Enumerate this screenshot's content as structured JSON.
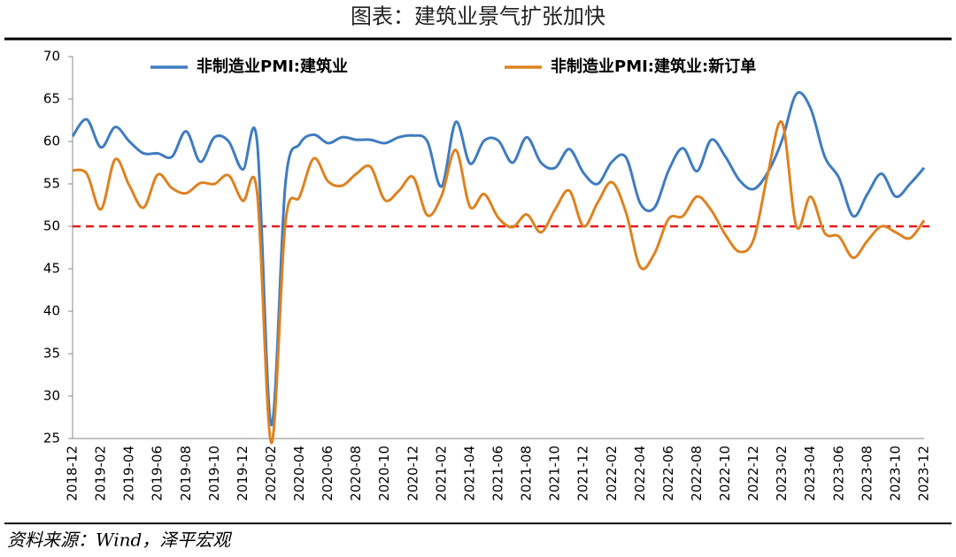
{
  "chart_data": {
    "type": "line",
    "title": "图表：建筑业景气扩张加快",
    "source": "资料来源：Wind，泽平宏观",
    "categories": [
      "2018-12",
      null,
      "2019-02",
      null,
      "2019-04",
      null,
      "2019-06",
      null,
      "2019-08",
      null,
      "2019-10",
      null,
      "2019-12",
      null,
      "2020-02",
      null,
      "2020-04",
      null,
      "2020-06",
      null,
      "2020-08",
      null,
      "2020-10",
      null,
      "2020-12",
      null,
      "2021-02",
      null,
      "2021-04",
      null,
      "2021-06",
      null,
      "2021-08",
      null,
      "2021-10",
      null,
      "2021-12",
      null,
      "2022-02",
      null,
      "2022-04",
      null,
      "2022-06",
      null,
      "2022-08",
      null,
      "2022-10",
      null,
      "2022-12",
      null,
      "2023-02",
      null,
      "2023-04",
      null,
      "2023-06",
      null,
      "2023-08",
      null,
      "2023-10",
      null,
      "2023-12"
    ],
    "series": [
      {
        "name": "非制造业PMI:建筑业",
        "color": "#3f7cc0",
        "values": [
          60.6,
          62.6,
          59.3,
          61.7,
          60.0,
          58.6,
          58.6,
          58.2,
          61.2,
          57.6,
          60.5,
          60.0,
          56.7,
          60.0,
          26.6,
          55.1,
          59.7,
          60.8,
          59.8,
          60.5,
          60.2,
          60.2,
          59.8,
          60.5,
          60.7,
          60.0,
          54.7,
          62.3,
          57.4,
          60.1,
          60.1,
          57.5,
          60.5,
          57.5,
          56.9,
          59.1,
          56.3,
          55.0,
          57.6,
          58.1,
          52.7,
          52.2,
          56.6,
          59.2,
          56.5,
          60.2,
          58.2,
          55.4,
          54.4,
          56.4,
          60.2,
          65.6,
          63.9,
          58.2,
          55.7,
          51.2,
          53.8,
          56.2,
          53.5,
          55.0,
          56.9
        ]
      },
      {
        "name": "非制造业PMI:建筑业:新订单",
        "color": "#dd8220",
        "values": [
          56.6,
          56.2,
          52.0,
          57.9,
          54.8,
          52.2,
          56.1,
          54.5,
          53.9,
          55.1,
          55.0,
          56.0,
          53.0,
          54.0,
          24.5,
          50.5,
          53.5,
          58.0,
          55.3,
          54.8,
          56.2,
          57.0,
          53.1,
          54.2,
          55.8,
          51.3,
          53.6,
          59.0,
          52.3,
          53.8,
          51.0,
          49.9,
          51.4,
          49.3,
          52.0,
          54.2,
          50.0,
          52.8,
          55.2,
          51.6,
          45.2,
          46.8,
          50.9,
          51.2,
          53.5,
          51.9,
          49.0,
          47.0,
          48.5,
          56.3,
          62.2,
          50.0,
          53.5,
          49.2,
          48.8,
          46.3,
          48.3,
          50.0,
          49.3,
          48.6,
          50.7
        ]
      }
    ],
    "reference_line": {
      "value": 50,
      "color": "#e01a1a",
      "dashed": true
    },
    "ylim": [
      25,
      70
    ],
    "yticks": [
      25,
      30,
      35,
      40,
      45,
      50,
      55,
      60,
      65,
      70
    ],
    "grid": false,
    "legend": "top"
  }
}
